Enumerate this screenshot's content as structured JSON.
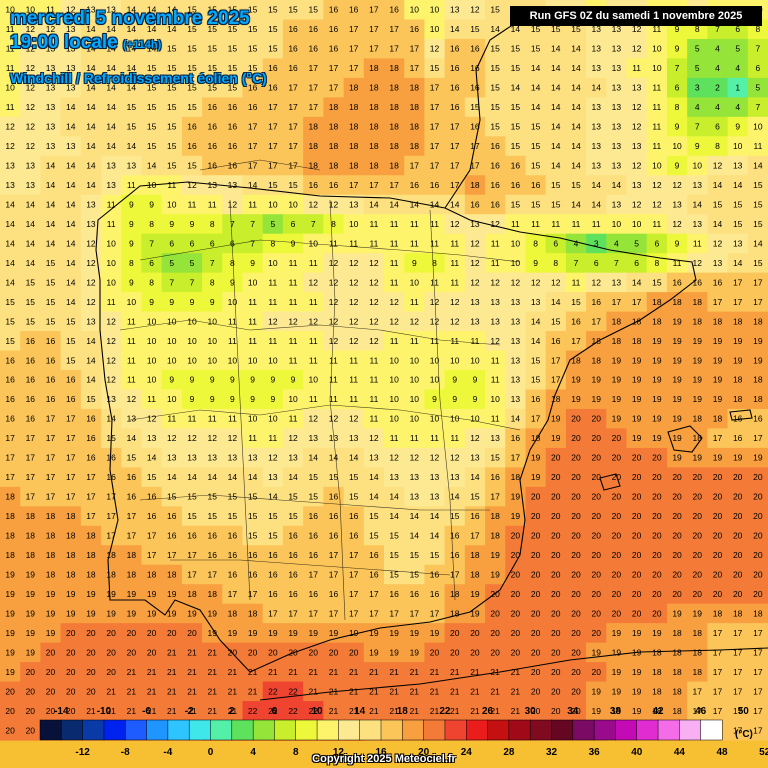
{
  "header": {
    "date_line": "mercredi 5 novembre 2025",
    "time_line": "19:00 locale",
    "lead_time": "(+114h)",
    "subtitle": "Windchill / Refroidissement éolien (°C)",
    "run_info": "Run GFS 0Z du samedi 1 novembre 2025"
  },
  "footer": {
    "copyright": "Copyright 2025 Meteociel.fr"
  },
  "legend": {
    "unit": "(°C)",
    "top_labels": [
      "-14",
      "-10",
      "-6",
      "-2",
      "2",
      "6",
      "10",
      "14",
      "18",
      "22",
      "26",
      "30",
      "34",
      "38",
      "42",
      "46",
      "50"
    ],
    "bottom_labels": [
      "-12",
      "-8",
      "-4",
      "0",
      "4",
      "8",
      "12",
      "16",
      "20",
      "24",
      "28",
      "32",
      "36",
      "40",
      "44",
      "48",
      "52"
    ],
    "colors": [
      "#07113a",
      "#0a2a70",
      "#0a3aa8",
      "#0022ee",
      "#1e5cff",
      "#1f96ff",
      "#2ec4ff",
      "#3fe6ea",
      "#55f0a8",
      "#5ee15c",
      "#94e43a",
      "#c8ee2c",
      "#eef83a",
      "#fdf46c",
      "#fde991",
      "#fde080",
      "#fbc55a",
      "#f8a040",
      "#f47a38",
      "#ef4530",
      "#ea1c1c",
      "#c41010",
      "#a00a18",
      "#800a20",
      "#650722",
      "#7a0a64",
      "#9a0a8c",
      "#c40ab4",
      "#e02cd0",
      "#f46ce8",
      "#f8b0f2",
      "#ffffff"
    ]
  },
  "windchill_grid": {
    "columns": 38,
    "rows": 38,
    "values": [
      "10 10 11 12 13 13 14 14 14 15 15 15 15 15 15 15 16 16 17 16 10 10 13 12 15 15 14 13 13 11 13 12 10 10 13 10 10 10",
      "11 12 12 13 14 14 14 14 14 15 15 15 15 15 16 16 16 17 17 17 16 10 14 15 14 14 15 15 15 13 13 12 11 9 8 7 6 8",
      "11 12 13 13 14 14 14 14 15 15 15 15 15 15 16 16 16 17 17 17 17 12 16 16 15 15 15 14 14 13 13 12 10 9 5 4 5 7",
      "11 12 13 13 14 14 14 15 15 15 15 15 15 16 16 17 17 17 18 18 17 15 16 16 15 15 14 14 14 13 13 11 10 7 5 4 4 6",
      "10 12 13 13 14 14 14 15 15 15 15 15 16 16 17 17 17 18 18 18 18 17 16 16 15 14 14 14 14 14 13 13 11 6 3 2 1 5",
      "11 12 13 14 14 14 15 15 15 15 16 16 16 17 17 17 18 18 18 18 18 17 16 15 15 15 14 14 14 13 13 12 11 8 4 4 4 7",
      "12 12 13 14 14 14 15 15 15 16 16 16 17 17 17 18 18 18 18 18 18 17 17 16 15 15 15 14 14 13 13 12 11 9 7 6 9 10",
      "12 12 13 13 14 14 14 15 15 16 16 16 17 17 17 18 18 18 18 18 18 17 17 17 16 15 15 14 14 13 13 13 11 10 9 8 10 11",
      "13 13 14 14 14 13 13 14 15 15 16 16 17 17 17 18 18 18 18 18 17 17 17 17 16 16 15 14 14 13 13 12 10 9 10 12 13 14",
      "13 13 14 14 14 13 11 10 11 12 13 13 14 15 15 16 16 17 17 17 16 16 17 18 16 16 16 15 15 14 14 13 12 12 13 14 14 15",
      "14 14 14 14 13 11 9 9 10 11 11 12 11 10 10 12 12 13 14 14 14 14 14 16 16 15 15 15 14 14 13 12 12 13 14 15 15 15",
      "14 14 14 14 13 11 9 8 9 9 8 7 7 5 6 7 8 10 11 11 11 11 12 13 12 11 11 11 11 11 10 10 11 12 13 14 15 15",
      "14 14 14 14 12 10 9 7 6 6 6 6 7 8 9 10 11 11 11 11 11 11 11 12 11 10 8 6 4 3 4 5 6 9 11 12 13 14",
      "14 14 15 14 12 10 8 6 5 5 7 8 9 10 11 11 12 12 12 11 9 8 11 12 11 10 9 8 7 6 7 6 8 11 12 13 14 15",
      "14 15 15 14 12 10 9 8 7 7 8 9 10 11 11 12 12 12 12 11 10 11 11 12 12 12 12 12 11 12 13 14 15 16 16 16 17 17",
      "15 15 15 14 12 11 10 9 9 9 9 10 11 11 11 11 12 12 12 12 11 12 12 13 13 13 13 14 15 16 17 17 18 18 18 17 17 17",
      "15 15 15 15 13 12 11 10 10 10 10 11 11 12 12 12 12 12 12 12 12 12 12 13 13 13 14 15 16 17 18 18 18 19 18 18 18 18",
      "15 16 16 15 14 12 11 10 10 10 10 11 11 11 11 11 12 12 12 11 11 11 11 11 12 13 14 16 17 18 18 18 19 19 19 19 19 19",
      "16 16 16 15 14 12 11 10 10 10 10 10 10 10 11 11 11 11 11 10 10 10 10 10 11 13 15 17 18 18 19 19 19 19 19 19 19 19",
      "16 16 16 16 14 12 11 10 9 9 9 9 9 9 9 10 11 11 11 10 10 10 9 9 11 13 15 17 19 19 19 19 19 19 19 19 18 18",
      "16 16 16 16 15 13 12 11 10 9 9 9 9 9 10 11 11 11 11 10 10 9 9 9 10 13 16 18 19 19 19 19 19 19 19 19 18 18",
      "16 16 17 17 16 14 13 12 11 11 11 11 10 10 11 12 12 12 11 10 10 10 10 10 11 14 17 19 20 20 19 19 19 19 18 18 16 16",
      "17 17 17 17 16 15 14 13 12 12 12 12 11 11 12 13 13 13 12 11 11 11 11 12 13 16 18 19 20 20 20 19 19 19 18 17 16 17",
      "17 17 17 17 16 16 15 14 13 13 13 13 13 12 13 14 14 14 13 12 12 12 12 13 15 17 19 20 20 20 20 20 20 19 19 19 19 19",
      "17 17 17 17 17 16 16 15 14 14 14 14 14 13 14 15 15 15 14 13 13 13 13 14 16 18 19 20 20 20 20 20 20 20 20 20 20 20",
      "18 17 17 17 17 17 16 16 15 15 15 15 15 14 15 15 16 15 14 14 13 13 14 15 17 19 20 20 20 20 20 20 20 20 20 20 20 20",
      "18 18 18 18 17 17 17 16 16 15 15 15 15 15 15 16 16 16 15 14 14 14 15 16 18 19 20 20 20 20 20 20 20 20 20 20 20 20",
      "18 18 18 18 18 17 17 17 16 16 16 16 15 15 16 16 16 16 15 15 14 14 16 17 18 20 20 20 20 20 20 20 20 20 20 20 20 20",
      "18 18 18 18 18 18 18 17 17 17 16 16 16 16 16 16 17 17 16 15 15 15 16 18 19 20 20 20 20 20 20 20 20 20 20 20 20 20",
      "19 19 18 18 18 18 18 18 18 17 17 16 16 16 16 17 17 17 16 15 15 16 17 18 19 20 20 20 20 20 20 20 20 20 20 20 20 20",
      "19 19 19 19 19 19 19 19 19 18 18 17 17 16 16 16 16 17 17 16 16 16 18 19 20 20 20 20 20 20 20 20 20 20 20 20 20 20",
      "19 19 19 19 19 19 19 19 19 19 19 18 18 17 17 17 17 17 17 17 17 17 18 19 20 20 20 20 20 20 20 20 20 19 19 18 18 18",
      "19 19 19 20 20 20 20 20 20 20 19 19 19 19 19 19 19 19 19 19 19 19 20 20 20 20 20 20 20 20 19 19 19 18 18 17 17 17",
      "19 19 20 20 20 20 20 20 21 21 21 20 20 20 20 20 20 20 19 19 19 20 20 20 20 20 20 20 20 19 19 19 18 18 18 17 17 17",
      "19 20 20 20 20 20 21 21 21 21 21 21 21 21 21 21 21 21 21 21 21 21 21 21 21 21 20 20 20 20 19 19 18 18 18 17 17 17",
      "20 20 20 20 20 21 21 21 21 21 21 21 21 22 22 21 21 21 21 21 21 21 21 21 21 21 20 20 20 19 19 19 18 18 17 17 17 17",
      "20 20 20 20 21 21 21 21 21 21 21 21 22 22 22 22 21 21 21 21 21 21 21 21 21 21 20 20 20 19 19 19 18 18 17 17 17 17",
      "20 20 20 20 21 21 21 21 21 21 22 22 22 23 23 22 22 22 21 21 21 21 21 21 21 21 21 20 20 20 19 19 18 18 17 17 17 17"
    ]
  }
}
